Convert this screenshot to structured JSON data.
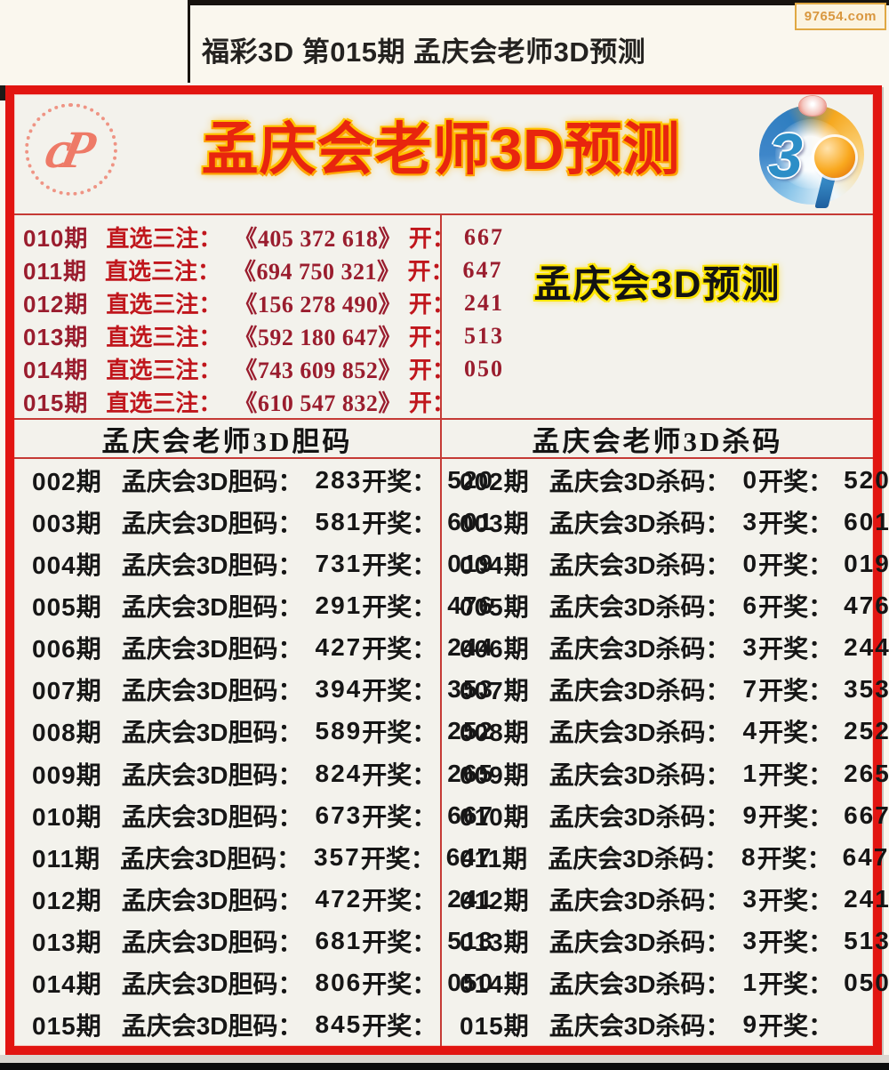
{
  "page": {
    "title": "福彩3D 第015期 孟庆会老师3D预测",
    "watermark": "97654.com"
  },
  "banner": {
    "title": "孟庆会老师3D预测"
  },
  "icons": {
    "cp_logo_glyph": "cP",
    "d3_logo_glyph": "3"
  },
  "predictions": {
    "row_label": "直选三注：",
    "open_label": "开：",
    "side_title": "孟庆会3D预测",
    "rows": [
      {
        "period": "010期",
        "numbers": "《405 372 618》",
        "result": "667"
      },
      {
        "period": "011期",
        "numbers": "《694 750 321》",
        "result": "647"
      },
      {
        "period": "012期",
        "numbers": "《156 278 490》",
        "result": "241"
      },
      {
        "period": "013期",
        "numbers": "《592 180 647》",
        "result": "513"
      },
      {
        "period": "014期",
        "numbers": "《743 609 852》",
        "result": "050"
      },
      {
        "period": "015期",
        "numbers": "《610 547 832》",
        "result": ""
      }
    ]
  },
  "dan_table": {
    "header": "孟庆会老师3D胆码",
    "row_label": "孟庆会3D胆码：",
    "open_label": "开奖：",
    "rows": [
      {
        "period": "002期",
        "value": "283",
        "result": "520"
      },
      {
        "period": "003期",
        "value": "581",
        "result": "601"
      },
      {
        "period": "004期",
        "value": "731",
        "result": "019"
      },
      {
        "period": "005期",
        "value": "291",
        "result": "476"
      },
      {
        "period": "006期",
        "value": "427",
        "result": "244"
      },
      {
        "period": "007期",
        "value": "394",
        "result": "353"
      },
      {
        "period": "008期",
        "value": "589",
        "result": "252"
      },
      {
        "period": "009期",
        "value": "824",
        "result": "265"
      },
      {
        "period": "010期",
        "value": "673",
        "result": "667"
      },
      {
        "period": "011期",
        "value": "357",
        "result": "647"
      },
      {
        "period": "012期",
        "value": "472",
        "result": "241"
      },
      {
        "period": "013期",
        "value": "681",
        "result": "513"
      },
      {
        "period": "014期",
        "value": "806",
        "result": "050"
      },
      {
        "period": "015期",
        "value": "845",
        "result": ""
      }
    ]
  },
  "sha_table": {
    "header": "孟庆会老师3D杀码",
    "row_label": "孟庆会3D杀码：",
    "open_label": "开奖：",
    "rows": [
      {
        "period": "002期",
        "value": "0",
        "result": "520"
      },
      {
        "period": "003期",
        "value": "3",
        "result": "601"
      },
      {
        "period": "004期",
        "value": "0",
        "result": "019"
      },
      {
        "period": "005期",
        "value": "6",
        "result": "476"
      },
      {
        "period": "006期",
        "value": "3",
        "result": "244"
      },
      {
        "period": "007期",
        "value": "7",
        "result": "353"
      },
      {
        "period": "008期",
        "value": "4",
        "result": "252"
      },
      {
        "period": "009期",
        "value": "1",
        "result": "265"
      },
      {
        "period": "010期",
        "value": "9",
        "result": "667"
      },
      {
        "period": "011期",
        "value": "8",
        "result": "647"
      },
      {
        "period": "012期",
        "value": "3",
        "result": "241"
      },
      {
        "period": "013期",
        "value": "3",
        "result": "513"
      },
      {
        "period": "014期",
        "value": "1",
        "result": "050"
      },
      {
        "period": "015期",
        "value": "9",
        "result": ""
      }
    ]
  },
  "colors": {
    "border_red": "#e21511",
    "line_red": "#c53b36",
    "crimson_text": "#9a1d2e",
    "bright_red_text": "#c0161c",
    "banner_red": "#e8250e",
    "glow_orange": "#ffaa00",
    "glow_yellow": "#ffe600",
    "body_text": "#161616",
    "background_cream": "#faf7ee",
    "panel_bg": "#f3f2ec",
    "watermark_orange": "#d9973f"
  }
}
